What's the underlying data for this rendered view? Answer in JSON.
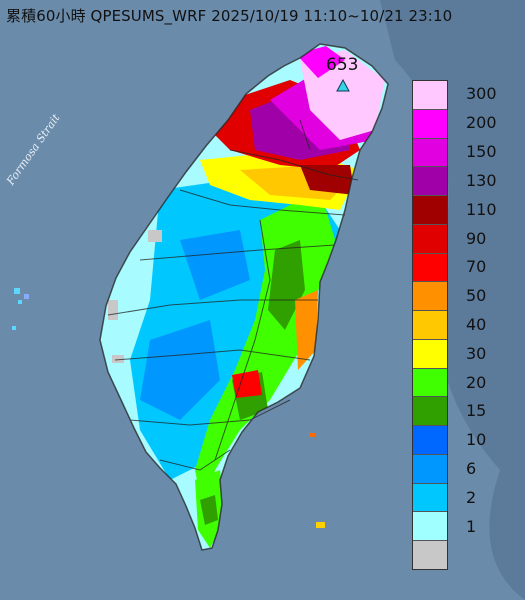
{
  "title": "累積60小時 QPESUMS_WRF 2025/10/19 11:10~10/21 23:10",
  "sea_label": "Formosa Strait",
  "peak_value": "653",
  "legend": {
    "levels": [
      "300",
      "200",
      "150",
      "130",
      "110",
      "90",
      "70",
      "50",
      "40",
      "30",
      "20",
      "15",
      "10",
      "6",
      "2",
      "1"
    ],
    "colors": [
      "#ffc8ff",
      "#ff00ff",
      "#e000e0",
      "#a000a8",
      "#a00000",
      "#e00000",
      "#ff0000",
      "#ff9000",
      "#ffc800",
      "#ffff00",
      "#40ff00",
      "#30a000",
      "#0068ff",
      "#0098ff",
      "#00c8ff",
      "#a0ffff",
      "#c8c8c8"
    ]
  },
  "colors": {
    "sea": "#5f7f9f",
    "land_light": "#a8fcff",
    "land_mid": "#00c8ff",
    "land_deep": "#0098ff",
    "outline": "#222222"
  }
}
